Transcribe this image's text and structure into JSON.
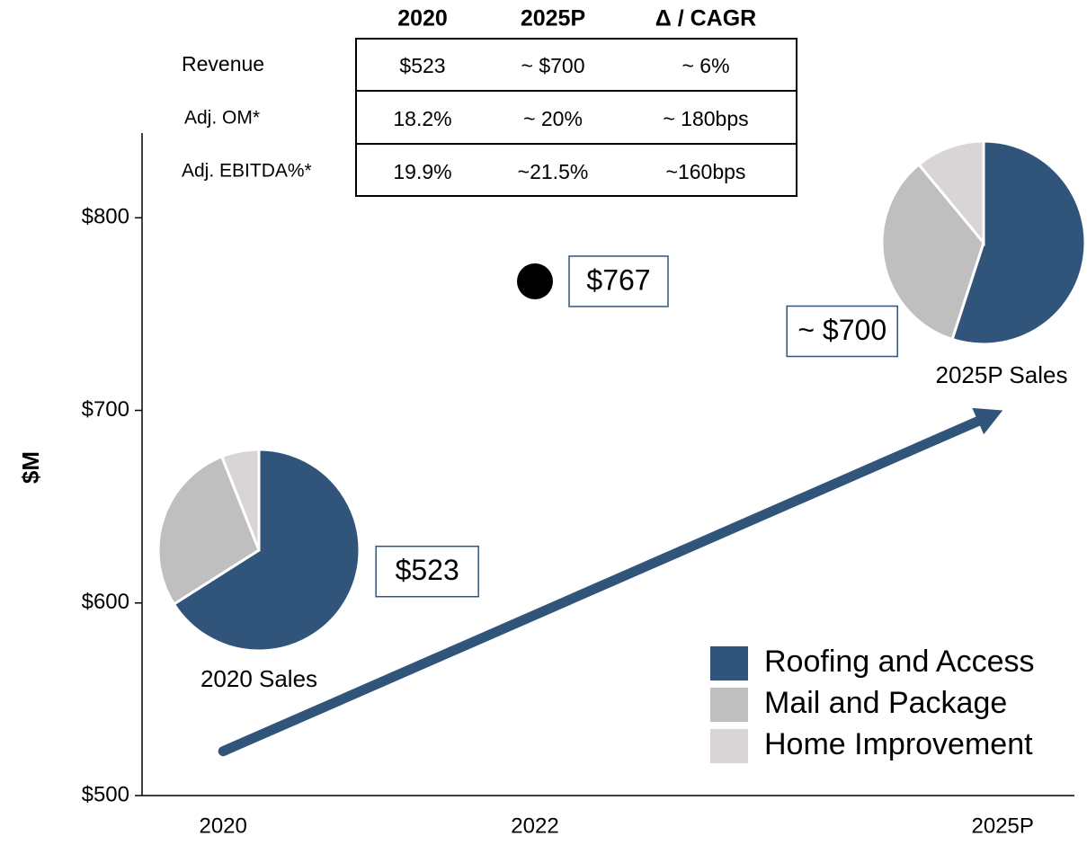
{
  "chart_data": [
    {
      "type": "line",
      "ylabel": "$M",
      "ylim": [
        500,
        844
      ],
      "yticks": [
        {
          "value": 500,
          "label": "$500"
        },
        {
          "value": 600,
          "label": "$600"
        },
        {
          "value": 700,
          "label": "$700"
        },
        {
          "value": 800,
          "label": "$800"
        }
      ],
      "xlim": [
        2019.48,
        2025.46
      ],
      "xticks": [
        2020,
        2022,
        {
          "value": 2025,
          "label": "2025P"
        }
      ],
      "series": [
        {
          "x": [
            2020,
            2025
          ],
          "values": [
            523,
            700
          ],
          "value_labels": [
            "$523",
            "~ $700"
          ],
          "color": "#31557a"
        },
        {
          "x": [
            2022
          ],
          "values": [
            767
          ],
          "value_labels": [
            "$767"
          ],
          "color": "#000000"
        }
      ]
    },
    {
      "type": "pie",
      "title": "2020 Sales",
      "categories": [
        "Roofing and Access",
        "Mail and Package",
        "Home Improvement"
      ],
      "values": [
        66,
        28,
        6
      ],
      "colors": [
        "#31557a",
        "#bfbfbf",
        "#d9d5d6"
      ]
    },
    {
      "type": "pie",
      "title": "2025P Sales",
      "categories": [
        "Roofing and Access",
        "Mail and Package",
        "Home Improvement"
      ],
      "values": [
        55,
        34,
        11
      ],
      "colors": [
        "#31557a",
        "#bfbfbf",
        "#d9d5d6"
      ]
    }
  ],
  "table": {
    "columns": [
      "2020",
      "2025P",
      "Δ / CAGR"
    ],
    "rows": [
      [
        "Revenue",
        "$523",
        "~ $700",
        "~ 6%"
      ],
      [
        "Adj. OM*",
        "18.2%",
        "~ 20%",
        "~ 180bps"
      ],
      [
        "Adj. EBITDA%*",
        "19.9%",
        "~21.5%",
        "~160bps"
      ]
    ]
  }
}
